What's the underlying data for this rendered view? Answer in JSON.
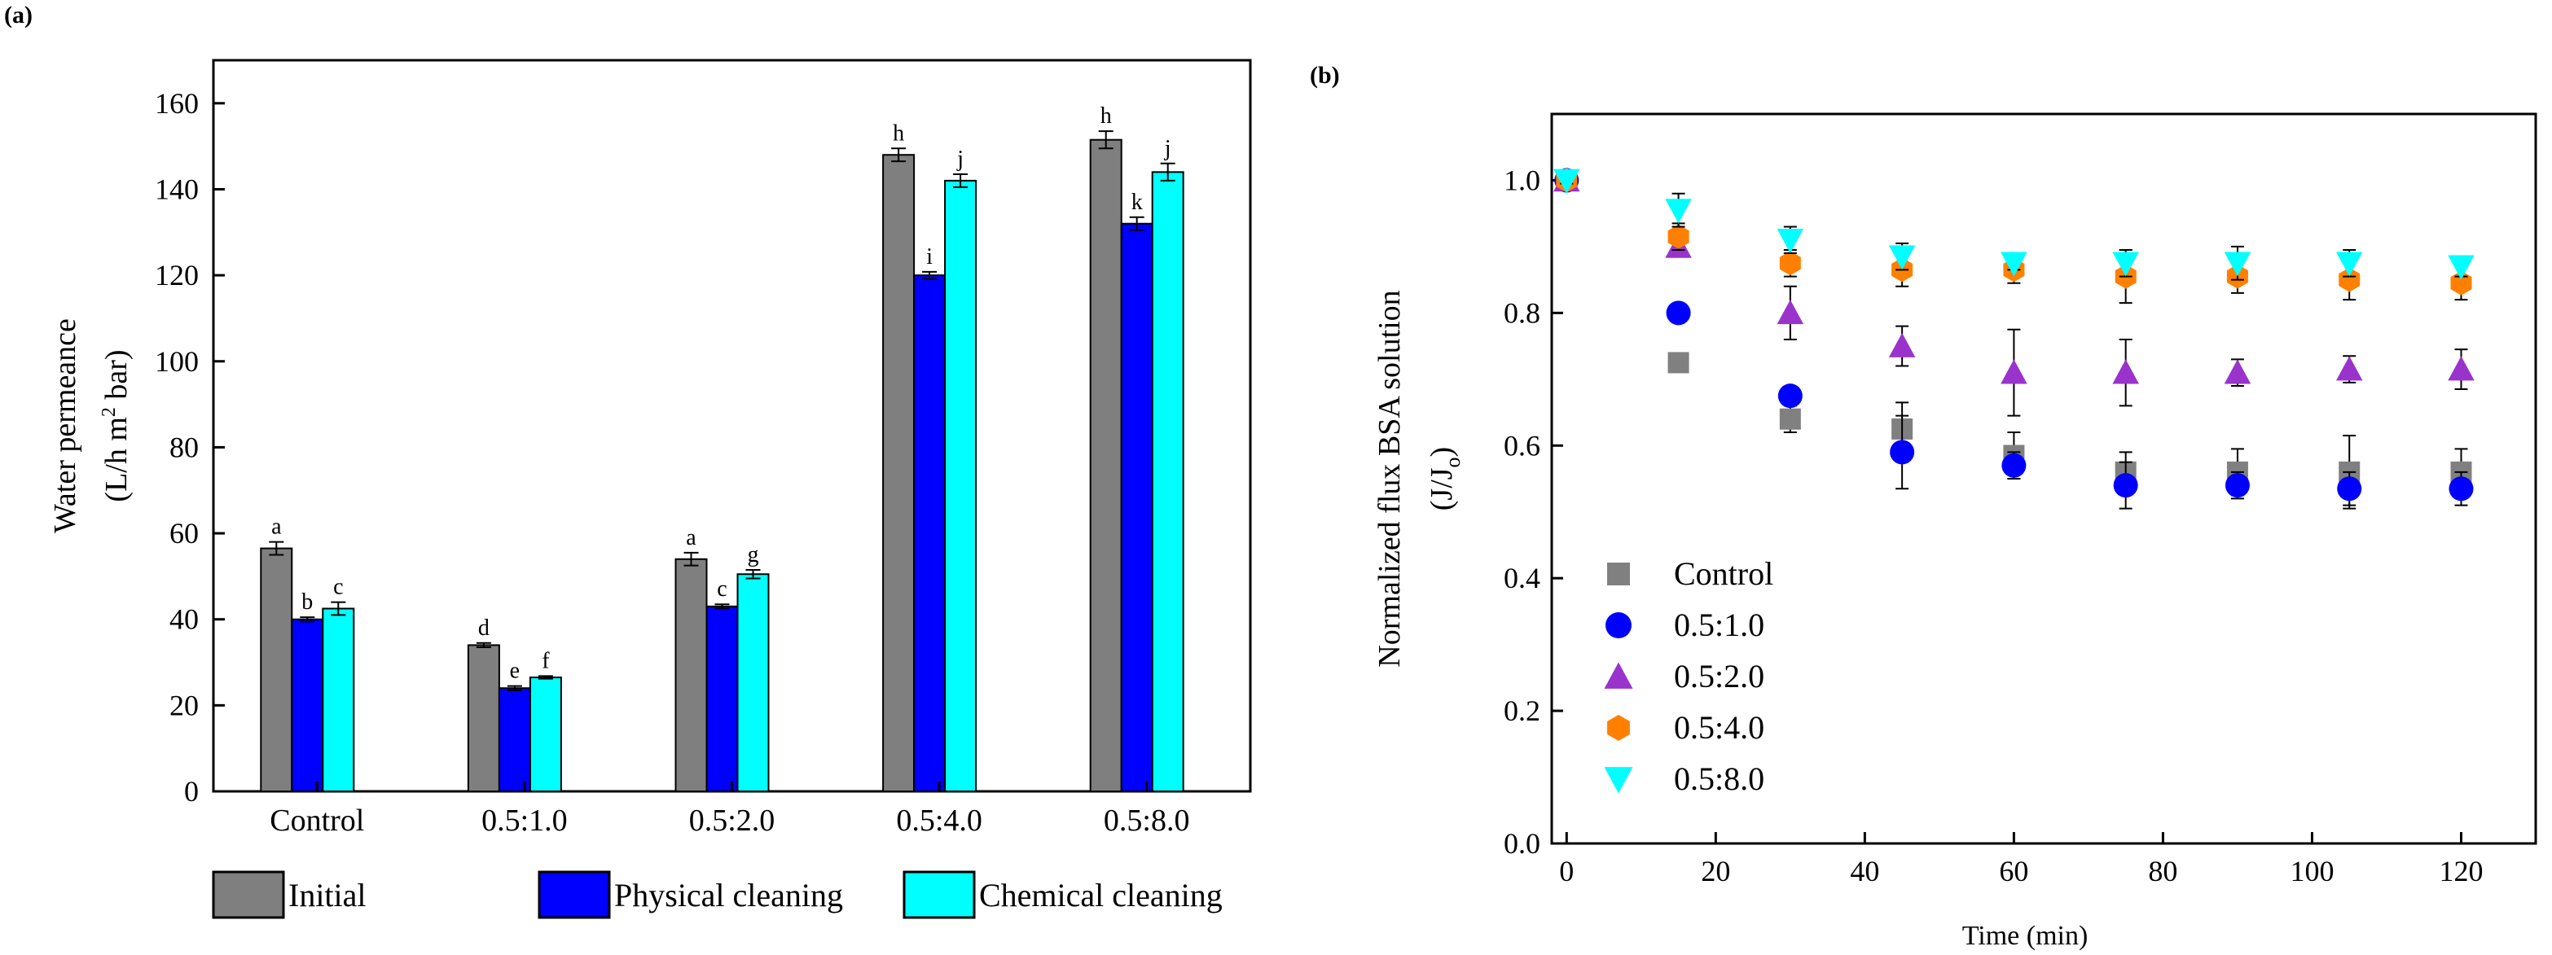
{
  "chart_data": [
    {
      "panel": "(a)",
      "type": "bar",
      "ylabel": "Water permeance",
      "ylabel_units": [
        "(L/h m",
        "2",
        " bar)"
      ],
      "ylim": [
        0,
        170
      ],
      "yticks": [
        0,
        20,
        40,
        60,
        80,
        100,
        120,
        140,
        160
      ],
      "categories": [
        "Control",
        "0.5:1.0",
        "0.5:2.0",
        "0.5:4.0",
        "0.5:8.0"
      ],
      "series": [
        {
          "name": "Initial",
          "color": "#7f7f7f",
          "values": [
            56.5,
            34,
            54,
            148,
            151.5
          ],
          "errors": [
            1.5,
            0.5,
            1.5,
            1.5,
            2
          ],
          "letters": [
            "a",
            "d",
            "a",
            "h",
            "h"
          ]
        },
        {
          "name": "Physical cleaning",
          "color": "#0000ff",
          "values": [
            40,
            24,
            43,
            120,
            132
          ],
          "errors": [
            0.5,
            0.5,
            0.5,
            0.8,
            1.5
          ],
          "letters": [
            "b",
            "e",
            "c",
            "i",
            "k"
          ]
        },
        {
          "name": "Chemical cleaning",
          "color": "#00ffff",
          "values": [
            42.5,
            26.5,
            50.5,
            142,
            144
          ],
          "errors": [
            1.5,
            0.3,
            1,
            1.5,
            2
          ],
          "letters": [
            "c",
            "f",
            "g",
            "j",
            "j"
          ]
        }
      ],
      "grid": false,
      "legend_position": "bottom"
    },
    {
      "panel": "(b)",
      "type": "scatter",
      "xlabel": "Time (min)",
      "ylabel": "Normalized flux BSA solution",
      "ylabel_units": [
        "(J/J",
        "o",
        ")"
      ],
      "xlim": [
        -2,
        130
      ],
      "ylim": [
        0,
        1.1
      ],
      "xticks": [
        0,
        20,
        40,
        60,
        80,
        100,
        120
      ],
      "yticks": [
        0.0,
        0.2,
        0.4,
        0.6,
        0.8,
        1.0
      ],
      "x": [
        0,
        15,
        30,
        45,
        60,
        75,
        90,
        105,
        120
      ],
      "series": [
        {
          "name": "Control",
          "marker": "square",
          "color": "#808080",
          "values": [
            1.0,
            0.725,
            0.64,
            0.625,
            0.585,
            0.56,
            0.56,
            0.56,
            0.56
          ],
          "errors": [
            0.005,
            0.01,
            0.02,
            0.04,
            0.035,
            0.03,
            0.035,
            0.055,
            0.035
          ]
        },
        {
          "name": "0.5:1.0",
          "marker": "circle",
          "color": "#0000ff",
          "values": [
            1.0,
            0.8,
            0.675,
            0.59,
            0.57,
            0.54,
            0.54,
            0.535,
            0.535
          ],
          "errors": [
            0.005,
            0.005,
            0.005,
            0.055,
            0.02,
            0.035,
            0.02,
            0.025,
            0.025
          ]
        },
        {
          "name": "0.5:2.0",
          "marker": "triangle-up",
          "color": "#9933cc",
          "values": [
            1.0,
            0.9,
            0.8,
            0.75,
            0.71,
            0.71,
            0.71,
            0.715,
            0.715
          ],
          "errors": [
            0.005,
            0.01,
            0.04,
            0.03,
            0.065,
            0.05,
            0.02,
            0.02,
            0.03
          ]
        },
        {
          "name": "0.5:4.0",
          "marker": "hexagon",
          "color": "#ff8000",
          "values": [
            1.0,
            0.915,
            0.875,
            0.865,
            0.865,
            0.855,
            0.855,
            0.85,
            0.845
          ],
          "errors": [
            0.005,
            0.02,
            0.02,
            0.025,
            0.02,
            0.04,
            0.025,
            0.03,
            0.025
          ]
        },
        {
          "name": "0.5:8.0",
          "marker": "triangle-down",
          "color": "#00ffff",
          "values": [
            1.0,
            0.955,
            0.91,
            0.885,
            0.875,
            0.875,
            0.875,
            0.875,
            0.87
          ],
          "errors": [
            0.005,
            0.025,
            0.02,
            0.02,
            0.01,
            0.02,
            0.025,
            0.02,
            0.015
          ]
        }
      ],
      "grid": false,
      "legend_position": "bottom-left"
    }
  ]
}
